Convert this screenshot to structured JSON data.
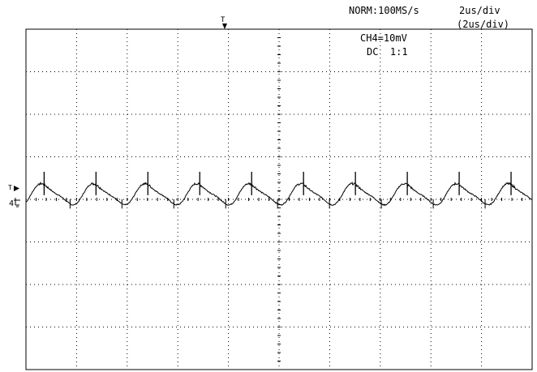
{
  "header": {
    "mode_rate": "NORM:100MS/s",
    "timebase": "2us/div",
    "timebase_sub": "(2us/div)"
  },
  "channel": {
    "scale": "CH4=10mV",
    "coupling": "DC  1:1",
    "marker_label": "4"
  },
  "chart_data": {
    "type": "line",
    "title": "",
    "xlabel": "",
    "ylabel": "",
    "grid": true,
    "grid_divisions": {
      "x": 10,
      "y": 8
    },
    "time_per_div_us": 2,
    "volts_per_div_mV": 10,
    "xlim_us": [
      -10,
      10
    ],
    "ylim_mV": [
      -40,
      40
    ],
    "series": [
      {
        "color": "#000000",
        "description_signal": "periodic ripple",
        "period_us": 2.05,
        "amplitude_mV": 2.6,
        "offset_mV": 1.2,
        "spike_mV": 5.5,
        "x_us": [
          -10.0,
          -9.0,
          -8.0,
          -7.0,
          -6.0,
          -5.0,
          -4.0,
          -3.0,
          -2.0,
          -1.0,
          0.0,
          1.0,
          2.0,
          3.0,
          4.0,
          5.0,
          6.0,
          7.0,
          8.0,
          9.0,
          10.0
        ],
        "y_mV": [
          2.0,
          -0.6,
          3.3,
          0.3,
          1.5,
          -0.8,
          3.2,
          0.6,
          1.0,
          -1.1,
          2.9,
          0.8,
          0.4,
          -1.2,
          2.4,
          1.3,
          -0.1,
          -1.1,
          1.9,
          2.0,
          2.5
        ]
      }
    ]
  }
}
